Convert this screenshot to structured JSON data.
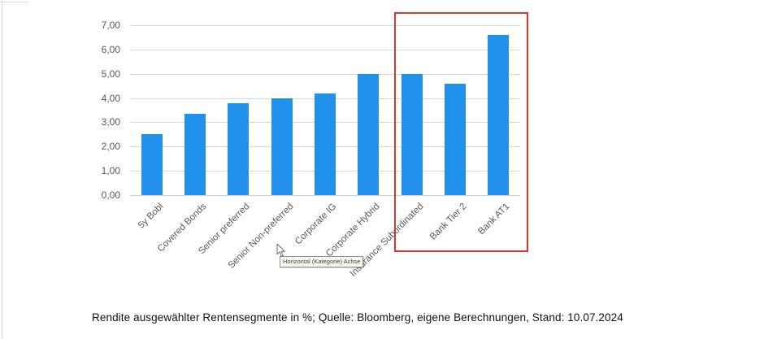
{
  "chart_data": {
    "type": "bar",
    "categories": [
      "5y Bobl",
      "Covered Bonds",
      "Senior preferred",
      "Senior Non-preferred",
      "Corporate IG",
      "Corporate Hybrid",
      "Insurance Subordinated",
      "Bank Tier 2",
      "Bank AT1"
    ],
    "values": [
      2.5,
      3.35,
      3.8,
      4.0,
      4.2,
      5.0,
      5.0,
      4.6,
      6.6
    ],
    "title": "",
    "xlabel": "",
    "ylabel": "",
    "ylim": [
      0,
      7
    ],
    "ytick_labels": [
      "0,00",
      "1,00",
      "2,00",
      "3,00",
      "4,00",
      "5,00",
      "6,00",
      "7,00"
    ],
    "grid": true,
    "legend": "none",
    "bar_color": "#2191ed",
    "grid_color": "#d9d9d9",
    "highlight": {
      "shape": "red-rectangle",
      "start_index": 6,
      "end_index": 8,
      "categories": [
        "Insurance Subordinated",
        "Bank Tier 2",
        "Bank AT1"
      ],
      "color": "#cf3a32"
    }
  },
  "tooltip": {
    "text": "Horizontal (Kategorie) Achse"
  },
  "caption": "Rendite ausgewählter Rentensegmente in %; Quelle: Bloomberg, eigene Berechnungen, Stand: 10.07.2024",
  "colors": {
    "bar": "#2191ed",
    "highlight": "#cf3a32",
    "gridline": "#d9d9d9",
    "axis_text": "#595959"
  }
}
